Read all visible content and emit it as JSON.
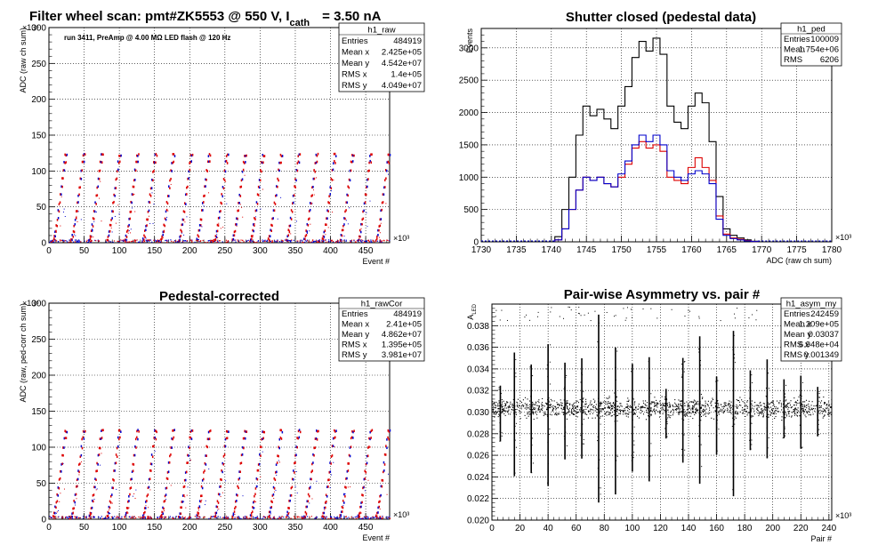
{
  "page_title": {
    "prefix": "Filter wheel scan: pmt#ZK5553 @   550 V, I",
    "sub": "cath",
    "suffix": "= 3.50 nA"
  },
  "chart_data": [
    {
      "type": "scatter",
      "title": "",
      "xlabel": "Event #",
      "ylabel": "ADC (raw ch sum)",
      "x_multiplier": "×10³",
      "y_multiplier": "×10⁶",
      "xlim": [
        0,
        484
      ],
      "ylim": [
        0,
        300
      ],
      "x_ticks": [
        0,
        50,
        100,
        150,
        200,
        250,
        300,
        350,
        400,
        450
      ],
      "y_ticks": [
        0,
        50,
        100,
        150,
        200,
        250,
        300
      ],
      "grid": true,
      "annotation": "run 3411, PreAmp @ 4.00 MΩ   LED flash @  120 Hz",
      "periods": 19,
      "levels": [
        0,
        4,
        9,
        16,
        24,
        33,
        44,
        55,
        66,
        77,
        88,
        100,
        112,
        122
      ],
      "stats": {
        "name": "h1_raw",
        "rows": [
          [
            "Entries",
            "484919"
          ],
          [
            "Mean x",
            "2.425e+05"
          ],
          [
            "Mean y",
            "4.542e+07"
          ],
          [
            "RMS x",
            "1.4e+05"
          ],
          [
            "RMS y",
            "4.049e+07"
          ]
        ]
      }
    },
    {
      "type": "line",
      "title": "Shutter closed (pedestal data)",
      "xlabel": "ADC (raw ch sum)",
      "ylabel": "Events",
      "x_multiplier": "×10³",
      "xlim": [
        1730,
        1780
      ],
      "ylim": [
        0,
        3300
      ],
      "x_ticks": [
        1730,
        1735,
        1740,
        1745,
        1750,
        1755,
        1760,
        1765,
        1770,
        1775,
        1780
      ],
      "y_ticks": [
        0,
        500,
        1000,
        1500,
        2000,
        2500,
        3000
      ],
      "grid": true,
      "x": [
        1741,
        1742,
        1743,
        1744,
        1745,
        1746,
        1747,
        1748,
        1749,
        1750,
        1751,
        1752,
        1753,
        1754,
        1755,
        1756,
        1757,
        1758,
        1759,
        1760,
        1761,
        1762,
        1763,
        1764,
        1765,
        1766,
        1767,
        1768,
        1769
      ],
      "series": [
        {
          "values": [
            80,
            500,
            1000,
            1650,
            2100,
            1950,
            2050,
            1900,
            1750,
            2100,
            2400,
            2850,
            3100,
            2950,
            3150,
            2900,
            2100,
            1850,
            1750,
            2100,
            2300,
            2150,
            1550,
            700,
            200,
            100,
            60,
            30,
            10
          ]
        },
        {
          "values": [
            30,
            200,
            500,
            800,
            1000,
            950,
            1000,
            900,
            850,
            1000,
            1200,
            1450,
            1550,
            1450,
            1500,
            1400,
            1000,
            950,
            900,
            1150,
            1300,
            1150,
            950,
            400,
            120,
            60,
            40,
            20,
            5
          ]
        },
        {
          "values": [
            30,
            200,
            500,
            800,
            1000,
            950,
            1000,
            900,
            850,
            1050,
            1250,
            1500,
            1650,
            1550,
            1650,
            1500,
            1100,
            1000,
            950,
            1050,
            1100,
            1050,
            900,
            350,
            100,
            50,
            30,
            15,
            5
          ]
        }
      ],
      "stats": {
        "name": "h1_ped",
        "rows": [
          [
            "Entries",
            "100009"
          ],
          [
            "Mean",
            "1.754e+06"
          ],
          [
            "RMS",
            "6206"
          ]
        ]
      }
    },
    {
      "type": "scatter",
      "title": "Pedestal-corrected",
      "xlabel": "Event #",
      "ylabel": "ADC (raw, ped-corr ch sum)",
      "x_multiplier": "×10³",
      "y_multiplier": "×10⁶",
      "xlim": [
        0,
        484
      ],
      "ylim": [
        0,
        300
      ],
      "x_ticks": [
        0,
        50,
        100,
        150,
        200,
        250,
        300,
        350,
        400,
        450
      ],
      "y_ticks": [
        0,
        50,
        100,
        150,
        200,
        250,
        300
      ],
      "grid": true,
      "periods": 19,
      "levels": [
        0,
        4,
        9,
        16,
        24,
        33,
        44,
        55,
        66,
        77,
        88,
        100,
        112,
        122
      ],
      "stats": {
        "name": "h1_rawCor",
        "rows": [
          [
            "Entries",
            "484919"
          ],
          [
            "Mean x",
            "2.41e+05"
          ],
          [
            "Mean y",
            "4.862e+07"
          ],
          [
            "RMS x",
            "1.395e+05"
          ],
          [
            "RMS y",
            "3.981e+07"
          ]
        ]
      }
    },
    {
      "type": "scatter",
      "title": "Pair-wise Asymmetry vs. pair #",
      "xlabel": "Pair #",
      "ylabel": "A",
      "ylabel_sub": "LED",
      "x_multiplier": "×10³",
      "xlim": [
        0,
        242
      ],
      "ylim": [
        0.02,
        0.04
      ],
      "x_ticks": [
        0,
        20,
        40,
        60,
        80,
        100,
        120,
        140,
        160,
        180,
        200,
        220,
        240
      ],
      "y_ticks": [
        0.02,
        0.022,
        0.024,
        0.026,
        0.028,
        0.03,
        0.032,
        0.034,
        0.036,
        0.038
      ],
      "grid": true,
      "center_value": 0.0304,
      "spike_x": [
        6,
        16,
        28,
        40,
        52,
        64,
        76,
        88,
        100,
        112,
        124,
        136,
        148,
        160,
        172,
        184,
        196,
        208,
        220,
        232
      ],
      "stats": {
        "name": "h1_asym_my",
        "rows": [
          [
            "Entries",
            "242459"
          ],
          [
            "Mean x",
            "1.209e+05"
          ],
          [
            "Mean y",
            "0.03037"
          ],
          [
            "RMS x",
            "6.948e+04"
          ],
          [
            "RMS y",
            "0.001349"
          ]
        ]
      }
    }
  ],
  "colors": {
    "red": "#dd0000",
    "blue": "#0000cc",
    "black": "#000000",
    "grid": "#000000"
  }
}
